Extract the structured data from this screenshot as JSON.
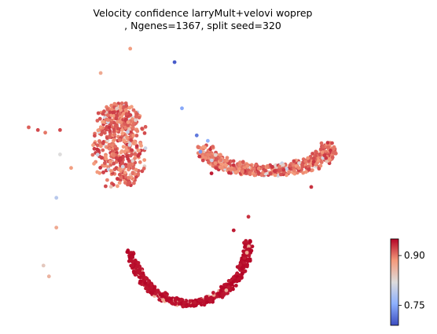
{
  "chart_data": {
    "type": "scatter",
    "title_line1": "Velocity confidence larryMult+velovi woprep",
    "title_line2": ", Ngenes=1367, split seed=320",
    "colormap": "coolwarm",
    "colorbar": {
      "vmin": 0.69,
      "vmax": 0.95,
      "ticks": [
        0.75,
        0.9
      ],
      "tick_labels": [
        "0.75",
        "0.90"
      ],
      "placement": "right-bottom"
    },
    "axes_visible": false,
    "clusters": [
      {
        "name": "curve",
        "cx": 0.47,
        "cy": 0.28,
        "a": 0.16,
        "b": 0.24,
        "t0": 3.35,
        "t1": 6.25,
        "cLow": 0.94,
        "cHigh": 0.95,
        "count": 480,
        "spread": 0.012
      },
      {
        "name": "arm",
        "cx": 0.68,
        "cy": 0.62,
        "a": 0.17,
        "b": 0.09,
        "t0": 3.3,
        "t1": 6.25,
        "cLow": 0.88,
        "cHigh": 0.93,
        "count": 520,
        "spread": 0.022
      },
      {
        "name": "left-blob",
        "cx": 0.28,
        "cy": 0.62,
        "a": 0.06,
        "b": 0.16,
        "t0": 0,
        "t1": 6.28,
        "cLow": 0.88,
        "cHigh": 0.93,
        "count": 520,
        "spread": 0.03
      }
    ],
    "outliers": [
      {
        "x": 0.43,
        "y": 0.93,
        "c": 0.7
      },
      {
        "x": 0.035,
        "y": 0.69,
        "c": 0.91
      },
      {
        "x": 0.06,
        "y": 0.68,
        "c": 0.92
      },
      {
        "x": 0.08,
        "y": 0.67,
        "c": 0.9
      },
      {
        "x": 0.12,
        "y": 0.68,
        "c": 0.92
      },
      {
        "x": 0.12,
        "y": 0.59,
        "c": 0.82
      },
      {
        "x": 0.15,
        "y": 0.54,
        "c": 0.88
      },
      {
        "x": 0.11,
        "y": 0.43,
        "c": 0.79
      },
      {
        "x": 0.11,
        "y": 0.32,
        "c": 0.87
      },
      {
        "x": 0.075,
        "y": 0.18,
        "c": 0.84
      },
      {
        "x": 0.09,
        "y": 0.14,
        "c": 0.86
      },
      {
        "x": 0.31,
        "y": 0.98,
        "c": 0.88
      },
      {
        "x": 0.23,
        "y": 0.89,
        "c": 0.87
      },
      {
        "x": 0.59,
        "y": 0.31,
        "c": 0.94
      },
      {
        "x": 0.63,
        "y": 0.36,
        "c": 0.93
      },
      {
        "x": 0.53,
        "y": 0.52,
        "c": 0.94
      },
      {
        "x": 0.8,
        "y": 0.47,
        "c": 0.93
      },
      {
        "x": 0.45,
        "y": 0.76,
        "c": 0.75
      },
      {
        "x": 0.49,
        "y": 0.66,
        "c": 0.72
      },
      {
        "x": 0.5,
        "y": 0.6,
        "c": 0.74
      },
      {
        "x": 0.52,
        "y": 0.64,
        "c": 0.76
      }
    ]
  }
}
